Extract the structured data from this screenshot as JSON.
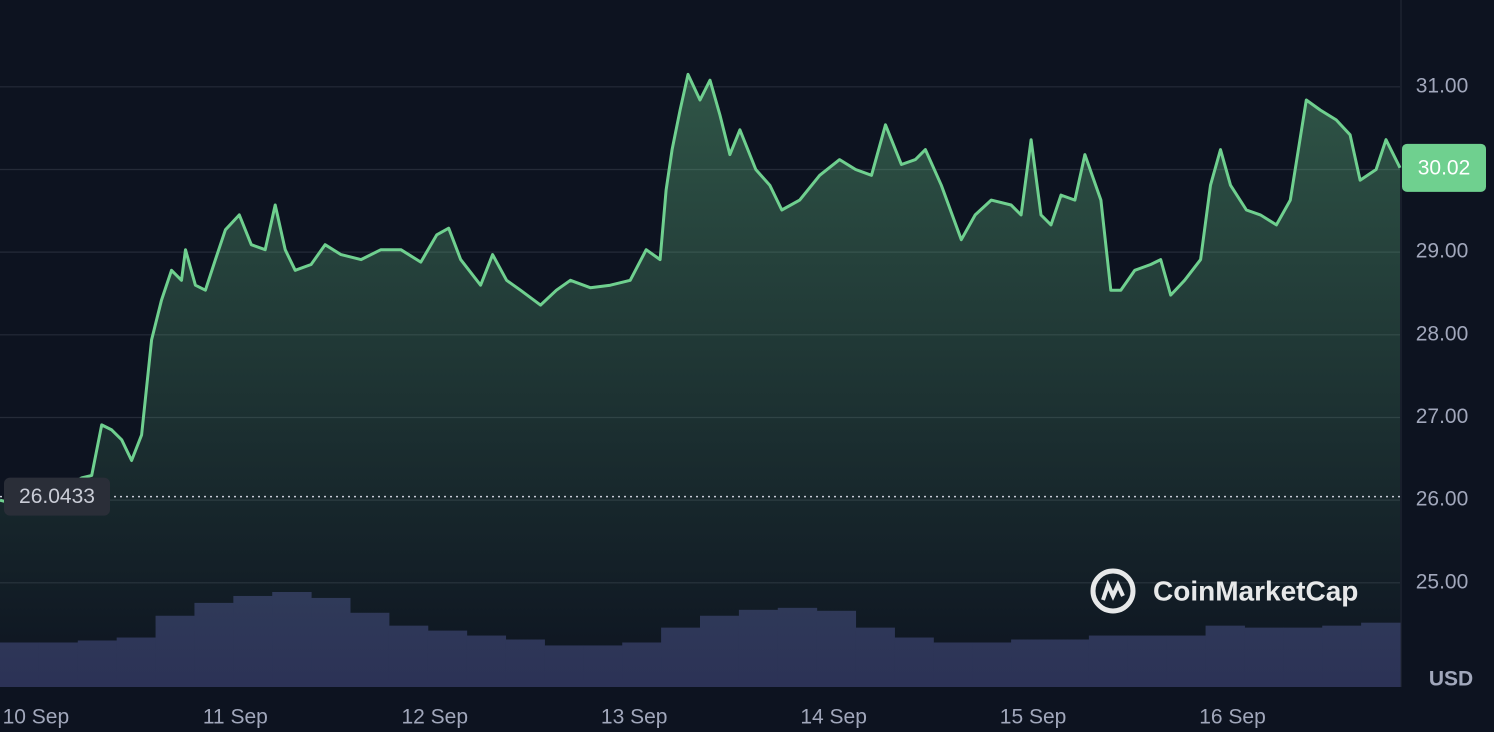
{
  "chart_data": {
    "type": "line",
    "watermark": "CoinMarketCap",
    "y_unit": "USD",
    "reference_price": 26.0433,
    "current_price": 30.02,
    "xlim": [
      -0.18,
      6.84
    ],
    "xticks": [
      {
        "value": 0,
        "label": "10 Sep"
      },
      {
        "value": 1,
        "label": "11 Sep"
      },
      {
        "value": 2,
        "label": "12 Sep"
      },
      {
        "value": 3,
        "label": "13 Sep"
      },
      {
        "value": 4,
        "label": "14 Sep"
      },
      {
        "value": 5,
        "label": "15 Sep"
      },
      {
        "value": 6,
        "label": "16 Sep"
      }
    ],
    "ylim": [
      23.74,
      32.05
    ],
    "yticks": [
      {
        "value": 25,
        "label": "25.00"
      },
      {
        "value": 26,
        "label": "26.00"
      },
      {
        "value": 27,
        "label": "27.00"
      },
      {
        "value": 28,
        "label": "28.00"
      },
      {
        "value": 29,
        "label": "29.00"
      },
      {
        "value": 30,
        "label": "30.00"
      },
      {
        "value": 31,
        "label": "31.00"
      }
    ],
    "grid": true,
    "series": [
      {
        "color": "#6fd08f",
        "x": [
          -0.18,
          -0.08,
          0.03,
          0.13,
          0.23,
          0.28,
          0.33,
          0.38,
          0.43,
          0.48,
          0.53,
          0.58,
          0.63,
          0.68,
          0.73,
          0.75,
          0.8,
          0.85,
          0.9,
          0.95,
          1.02,
          1.08,
          1.15,
          1.2,
          1.25,
          1.3,
          1.38,
          1.45,
          1.53,
          1.63,
          1.73,
          1.83,
          1.93,
          2.01,
          2.07,
          2.13,
          2.23,
          2.29,
          2.36,
          2.43,
          2.53,
          2.61,
          2.68,
          2.78,
          2.88,
          2.98,
          3.06,
          3.13,
          3.16,
          3.19,
          3.23,
          3.27,
          3.33,
          3.38,
          3.43,
          3.48,
          3.53,
          3.61,
          3.68,
          3.74,
          3.83,
          3.93,
          4.03,
          4.11,
          4.19,
          4.26,
          4.34,
          4.41,
          4.46,
          4.54,
          4.64,
          4.71,
          4.79,
          4.89,
          4.94,
          4.99,
          5.04,
          5.09,
          5.14,
          5.21,
          5.26,
          5.34,
          5.39,
          5.44,
          5.51,
          5.59,
          5.64,
          5.69,
          5.76,
          5.84,
          5.89,
          5.94,
          5.99,
          6.07,
          6.14,
          6.22,
          6.29,
          6.37,
          6.44,
          6.52,
          6.59,
          6.64,
          6.72,
          6.77,
          6.84
        ],
        "values": [
          26.0,
          25.94,
          26.0,
          26.12,
          26.27,
          26.3,
          26.91,
          26.85,
          26.73,
          26.48,
          26.79,
          27.94,
          28.42,
          28.78,
          28.66,
          29.03,
          28.6,
          28.54,
          28.91,
          29.27,
          29.45,
          29.09,
          29.03,
          29.57,
          29.03,
          28.78,
          28.85,
          29.09,
          28.97,
          28.91,
          29.03,
          29.03,
          28.88,
          29.21,
          29.29,
          28.91,
          28.6,
          28.97,
          28.66,
          28.54,
          28.36,
          28.54,
          28.66,
          28.57,
          28.6,
          28.66,
          29.03,
          28.91,
          29.75,
          30.24,
          30.72,
          31.15,
          30.84,
          31.08,
          30.66,
          30.18,
          30.48,
          30.0,
          29.81,
          29.51,
          29.63,
          29.93,
          30.12,
          30.0,
          29.93,
          30.54,
          30.06,
          30.12,
          30.24,
          29.81,
          29.15,
          29.45,
          29.63,
          29.57,
          29.45,
          30.36,
          29.45,
          29.33,
          29.69,
          29.63,
          30.18,
          29.63,
          28.54,
          28.54,
          28.78,
          28.85,
          28.91,
          28.48,
          28.66,
          28.91,
          29.81,
          30.24,
          29.81,
          29.51,
          29.45,
          29.33,
          29.63,
          30.84,
          30.72,
          30.6,
          30.42,
          29.87,
          30.0,
          30.36,
          30.02
        ]
      }
    ],
    "volume": {
      "color": "#2c3256",
      "values": [
        45,
        45,
        47,
        50,
        72,
        85,
        92,
        96,
        90,
        75,
        62,
        57,
        52,
        48,
        42,
        42,
        45,
        60,
        72,
        78,
        80,
        77,
        60,
        50,
        45,
        45,
        48,
        48,
        52,
        52,
        52,
        62,
        60,
        60,
        62,
        65
      ]
    }
  }
}
